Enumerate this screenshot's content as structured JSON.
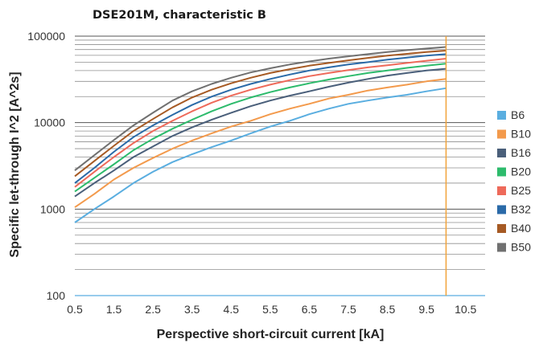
{
  "chart_data": {
    "type": "line",
    "title": "DSE201M, characteristic B",
    "xlabel": "Perspective short-circuit current [kA]",
    "ylabel": "Specific let-through I^2   [A^2s]",
    "x_scale": "linear",
    "y_scale": "log",
    "xlim": [
      0.5,
      11
    ],
    "ylim": [
      100,
      100000
    ],
    "x_ticks": [
      "0.5",
      "1.5",
      "2.5",
      "3.5",
      "4.5",
      "5.5",
      "6.5",
      "7.5",
      "8.5",
      "9.5",
      "10.5"
    ],
    "y_ticks": [
      "100",
      "1000",
      "10000",
      "100000"
    ],
    "grid": true,
    "legend_position": "right",
    "vertical_marker": {
      "x": 10,
      "color": "#f2a33a"
    },
    "x": [
      0.5,
      1,
      1.5,
      2,
      2.5,
      3,
      3.5,
      4,
      4.5,
      5,
      5.5,
      6,
      6.5,
      7,
      7.5,
      8,
      8.5,
      9,
      9.5,
      10
    ],
    "series": [
      {
        "name": "B6",
        "color": "#5aaee0",
        "values": [
          700,
          1000,
          1400,
          2000,
          2700,
          3500,
          4300,
          5200,
          6200,
          7500,
          9000,
          10500,
          12500,
          14500,
          16500,
          18000,
          19500,
          21000,
          23000,
          25000
        ]
      },
      {
        "name": "B10",
        "color": "#f39a4c",
        "values": [
          1050,
          1500,
          2200,
          3000,
          3900,
          5000,
          6200,
          7500,
          9000,
          10500,
          12500,
          14500,
          16500,
          19000,
          21000,
          23500,
          25500,
          27500,
          30000,
          32000
        ]
      },
      {
        "name": "B16",
        "color": "#4a5f7a",
        "values": [
          1400,
          2000,
          2800,
          4000,
          5300,
          7000,
          8800,
          10800,
          13000,
          15500,
          18000,
          20500,
          23000,
          26000,
          29000,
          32000,
          35000,
          37500,
          40000,
          42000
        ]
      },
      {
        "name": "B20",
        "color": "#2dbb6c",
        "values": [
          1600,
          2300,
          3300,
          4800,
          6500,
          8500,
          10800,
          13500,
          16500,
          19500,
          22500,
          25500,
          28500,
          31500,
          34500,
          37500,
          40000,
          43000,
          45500,
          48000
        ]
      },
      {
        "name": "B25",
        "color": "#ee6a5a",
        "values": [
          1800,
          2700,
          4000,
          5800,
          8000,
          10500,
          13500,
          17000,
          20500,
          24000,
          27500,
          31000,
          34500,
          37500,
          40500,
          43500,
          46000,
          49000,
          52000,
          55000
        ]
      },
      {
        "name": "B32",
        "color": "#2a6aa8",
        "values": [
          2000,
          3000,
          4600,
          6800,
          9300,
          12300,
          16000,
          20000,
          24000,
          28000,
          32000,
          36000,
          40000,
          43500,
          47000,
          50000,
          53500,
          56500,
          59500,
          62000
        ]
      },
      {
        "name": "B40",
        "color": "#a65a24",
        "values": [
          2400,
          3600,
          5400,
          8000,
          11000,
          15000,
          19500,
          24000,
          28500,
          33000,
          37500,
          41500,
          45500,
          49000,
          52500,
          56000,
          59500,
          62500,
          65500,
          68000
        ]
      },
      {
        "name": "B50",
        "color": "#707070",
        "values": [
          2800,
          4200,
          6300,
          9300,
          13000,
          18000,
          23000,
          28000,
          33000,
          38000,
          42500,
          47000,
          51000,
          55000,
          58500,
          62000,
          65500,
          69000,
          72000,
          75000
        ]
      }
    ]
  }
}
